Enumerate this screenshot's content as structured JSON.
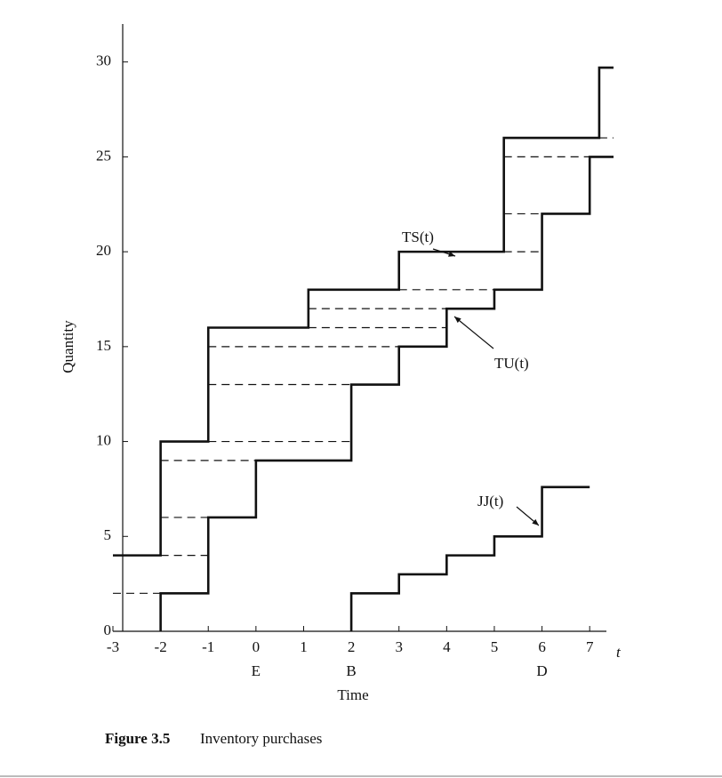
{
  "chart_data": {
    "type": "step",
    "xlabel": "Time",
    "ylabel": "Quantity",
    "x_symbol": "t",
    "xlim": [
      -3,
      7.5
    ],
    "ylim": [
      0,
      32
    ],
    "xticks": [
      -3,
      -2,
      -1,
      0,
      1,
      2,
      3,
      4,
      5,
      6,
      7
    ],
    "yticks": [
      0,
      5,
      10,
      15,
      20,
      25,
      30
    ],
    "series": [
      {
        "name": "TS(t)",
        "color": "#111111",
        "x": [
          -3,
          -2,
          -1,
          1.1,
          3,
          5.2,
          7.2,
          7.5
        ],
        "values": [
          4,
          10,
          16,
          18,
          20,
          26,
          29.7,
          29.7
        ]
      },
      {
        "name": "TU(t)",
        "color": "#111111",
        "x": [
          -2,
          -2,
          -1,
          0,
          2,
          3,
          4,
          5,
          6,
          7,
          7.5
        ],
        "values": [
          0,
          2,
          6,
          9,
          13,
          15,
          17,
          18,
          22,
          25,
          25
        ]
      },
      {
        "name": "JJ(t)",
        "color": "#111111",
        "x": [
          2,
          2,
          3,
          4,
          5,
          6,
          7
        ],
        "values": [
          0,
          2,
          3,
          4,
          5,
          7.6,
          7.6
        ]
      }
    ],
    "reference_lines": [
      {
        "y": 2,
        "x": [
          -3,
          -2
        ]
      },
      {
        "y": 4,
        "x": [
          -2,
          -1
        ]
      },
      {
        "y": 6,
        "x": [
          -2,
          -1
        ]
      },
      {
        "y": 9,
        "x": [
          -2,
          0
        ]
      },
      {
        "y": 10,
        "x": [
          -1,
          2
        ]
      },
      {
        "y": 13,
        "x": [
          -1,
          2
        ]
      },
      {
        "y": 15,
        "x": [
          -1,
          3
        ]
      },
      {
        "y": 16,
        "x": [
          1.1,
          4
        ]
      },
      {
        "y": 17,
        "x": [
          1.1,
          4
        ]
      },
      {
        "y": 18,
        "x": [
          3,
          5
        ]
      },
      {
        "y": 20,
        "x": [
          5.2,
          6
        ]
      },
      {
        "y": 22,
        "x": [
          5.2,
          6
        ]
      },
      {
        "y": 25,
        "x": [
          5.2,
          7.5
        ]
      },
      {
        "y": 26,
        "x": [
          7.2,
          7.5
        ]
      }
    ],
    "x_annotations": [
      {
        "x": 0,
        "label": "E"
      },
      {
        "x": 2,
        "label": "B"
      },
      {
        "x": 6,
        "label": "D"
      }
    ],
    "caption": {
      "number": "Figure 3.5",
      "text": "Inventory purchases"
    }
  }
}
